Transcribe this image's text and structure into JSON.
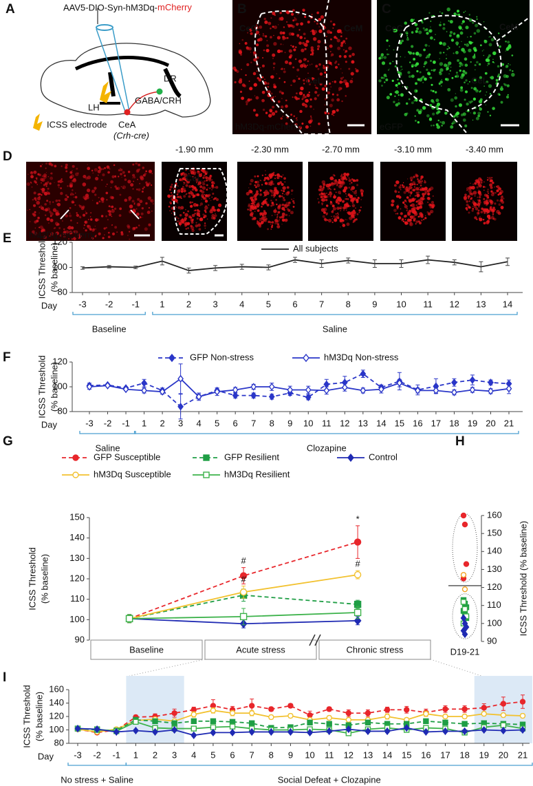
{
  "figure": {
    "A": {
      "label": "A",
      "virus": "AAV5-DIO-Syn-hM3Dq-",
      "virus_tag": "mCherry",
      "dr": "DR",
      "lh": "LH",
      "gaba": "GABA/CRH",
      "electrode": "ICSS electrode",
      "cea": "CeA",
      "cre": "(Crh-cre)"
    },
    "B": {
      "label": "B",
      "cec": "CeC",
      "cem": "CeM",
      "cel": "CeL",
      "stain": "hM3Dq-mCherry"
    },
    "C": {
      "label": "C",
      "cec": "CeC",
      "cem": "CeM",
      "cel": "CeL",
      "stain": "eGFP"
    },
    "D": {
      "label": "D",
      "stain": "hM3Dq-mCherry",
      "cel": "CeL",
      "levels": [
        "-1.90 mm",
        "-2.30 mm",
        "-2.70 mm",
        "-3.10 mm",
        "-3.40 mm"
      ]
    }
  },
  "chart_data": [
    {
      "type": "line",
      "label": "E",
      "ylabel": [
        "ICSS Threshold",
        "(% baseline)"
      ],
      "xlabel": "Day",
      "categories": [
        "-3",
        "-2",
        "-1",
        "1",
        "2",
        "3",
        "4",
        "5",
        "6",
        "7",
        "8",
        "9",
        "10",
        "11",
        "12",
        "13",
        "14"
      ],
      "groups": [
        "Baseline",
        "Saline"
      ],
      "ylim": [
        80,
        120
      ],
      "yticks": [
        80,
        100,
        120
      ],
      "series": [
        {
          "name": "All subjects",
          "color": "#222222",
          "marker": "none",
          "dash": false,
          "values": [
            99.5,
            100.5,
            100,
            105,
            97.5,
            99.5,
            100.5,
            100,
            106,
            103,
            105.5,
            103,
            103,
            106,
            104,
            100.5,
            104.5
          ],
          "errors": [
            1,
            1,
            1,
            3,
            2,
            2,
            2,
            2,
            2,
            3,
            2,
            3,
            3,
            3,
            2,
            4,
            3
          ]
        }
      ]
    },
    {
      "type": "line",
      "label": "F",
      "ylabel": [
        "ICSS Threshold",
        "(% baseline)"
      ],
      "xlabel": "Day",
      "categories": [
        "-3",
        "-2",
        "-1",
        "1",
        "2",
        "3",
        "4",
        "5",
        "6",
        "7",
        "8",
        "9",
        "10",
        "11",
        "12",
        "13",
        "14",
        "15",
        "16",
        "17",
        "18",
        "19",
        "20",
        "21"
      ],
      "groups": [
        "Saline",
        "Clozapine"
      ],
      "ylim": [
        80,
        120
      ],
      "yticks": [
        80,
        100,
        120
      ],
      "series": [
        {
          "name": "GFP Non-stress",
          "color": "#2a36c8",
          "marker": "diamond",
          "filled": true,
          "dash": true,
          "values": [
            101,
            101.5,
            99,
            103,
            97,
            84,
            92,
            97,
            93,
            93,
            92,
            95,
            91.5,
            102,
            103.5,
            110.5,
            99.5,
            104.5,
            97.5,
            100.5,
            103.5,
            105.5,
            103.5,
            102.5
          ],
          "errors": [
            2,
            1,
            1,
            3,
            2,
            10,
            3,
            2,
            2,
            2,
            2,
            2,
            2,
            4,
            5,
            3,
            2,
            7,
            4,
            6,
            3,
            4,
            2,
            3
          ]
        },
        {
          "name": "hM3Dq Non-stress",
          "color": "#2a36c8",
          "marker": "diamond",
          "filled": false,
          "dash": false,
          "values": [
            100,
            101,
            98,
            97,
            96,
            106.5,
            92,
            96,
            97.5,
            100,
            100,
            97.5,
            97.5,
            97,
            99.5,
            97,
            98,
            103,
            97,
            97,
            95.5,
            97.5,
            96.5,
            98.5
          ],
          "errors": [
            2,
            1,
            1,
            2,
            2,
            12,
            2,
            3,
            2,
            2,
            3,
            3,
            3,
            3,
            3,
            2,
            3,
            3,
            2,
            2,
            2,
            2,
            2,
            4
          ]
        }
      ]
    },
    {
      "type": "line",
      "label": "G",
      "ylabel": [
        "ICSS Threshold",
        "(% baseline)"
      ],
      "categories": [
        "Baseline",
        "Acute stress",
        "Chronic stress"
      ],
      "ylim": [
        90,
        150
      ],
      "yticks": [
        90,
        100,
        110,
        120,
        130,
        140,
        150
      ],
      "series": [
        {
          "name": "GFP Susceptible",
          "color": "#e8262b",
          "marker": "circle",
          "filled": true,
          "dash": true,
          "values": [
            100.5,
            121.5,
            138
          ],
          "errors": [
            2,
            4,
            8
          ],
          "annotations": [
            null,
            "#",
            "*"
          ]
        },
        {
          "name": "GFP Resilient",
          "color": "#1f9e45",
          "marker": "square",
          "filled": true,
          "dash": true,
          "values": [
            100.5,
            112,
            107.5
          ],
          "errors": [
            2,
            3,
            2
          ]
        },
        {
          "name": "Control",
          "color": "#1f2ab3",
          "marker": "diamond",
          "filled": true,
          "dash": false,
          "values": [
            100.5,
            98,
            99.5
          ],
          "errors": [
            2,
            2,
            2
          ]
        },
        {
          "name": "hM3Dq Susceptible",
          "color": "#f2c12e",
          "marker": "circle",
          "filled": false,
          "dash": false,
          "values": [
            100.5,
            113.5,
            122
          ],
          "errors": [
            2,
            3,
            2
          ],
          "annotations": [
            null,
            "#",
            "#"
          ]
        },
        {
          "name": "hM3Dq Resilient",
          "color": "#3cb24a",
          "marker": "square",
          "filled": false,
          "dash": false,
          "values": [
            100.5,
            101.5,
            103.5
          ],
          "errors": [
            2,
            4,
            3
          ]
        }
      ]
    },
    {
      "type": "scatter",
      "label": "H",
      "ylabel": "ICSS Threshold (% baseline)",
      "xlabel": "D19-21",
      "ylim": [
        90,
        160
      ],
      "yticks": [
        90,
        100,
        110,
        120,
        130,
        140,
        150,
        160
      ],
      "series": [
        {
          "color": "#e8262b",
          "marker": "circle",
          "filled": true,
          "values": [
            160,
            155,
            133,
            125
          ]
        },
        {
          "color": "#f2a21e",
          "marker": "circle",
          "filled": false,
          "values": [
            127,
            119
          ]
        },
        {
          "color": "#1f9e45",
          "marker": "square",
          "filled": true,
          "values": [
            113,
            111,
            109,
            107,
            105,
            103
          ]
        },
        {
          "color": "#3cb24a",
          "marker": "square",
          "filled": false,
          "values": [
            112,
            108,
            104,
            100
          ]
        },
        {
          "color": "#1f2ab3",
          "marker": "diamond",
          "filled": true,
          "values": [
            103,
            100,
            98,
            96,
            94
          ]
        }
      ]
    },
    {
      "type": "line",
      "label": "I",
      "ylabel": [
        "ICSS Threshold",
        "(% baseline)"
      ],
      "xlabel": "Day",
      "categories": [
        "-3",
        "-2",
        "-1",
        "1",
        "2",
        "3",
        "4",
        "5",
        "6",
        "7",
        "8",
        "9",
        "10",
        "11",
        "12",
        "13",
        "14",
        "15",
        "16",
        "17",
        "18",
        "19",
        "20",
        "21"
      ],
      "groups": [
        "No stress + Saline",
        "Social Defeat + Clozapine"
      ],
      "ylim": [
        80,
        160
      ],
      "yticks": [
        80,
        100,
        120,
        140,
        160
      ],
      "series": [
        {
          "color": "#e8262b",
          "marker": "circle",
          "filled": true,
          "dash": true,
          "values": [
            101,
            96,
            100,
            119,
            120,
            125,
            130,
            136,
            130,
            136,
            131,
            136,
            122,
            131,
            125,
            125,
            130,
            130,
            126,
            131,
            131,
            133,
            139,
            142
          ],
          "errors": [
            2,
            2,
            2,
            3,
            4,
            6,
            4,
            9,
            5,
            10,
            3,
            3,
            6,
            3,
            5,
            5,
            4,
            5,
            5,
            5,
            5,
            6,
            10,
            10
          ]
        },
        {
          "color": "#f2c12e",
          "marker": "circle",
          "filled": false,
          "dash": false,
          "values": [
            101,
            97,
            101,
            114,
            116,
            113,
            123,
            129,
            125,
            125,
            119,
            121,
            115,
            118,
            115,
            115,
            120,
            115,
            124,
            120,
            120,
            124,
            122,
            121
          ],
          "errors": [
            2,
            2,
            2,
            3,
            3,
            3,
            4,
            4,
            4,
            4,
            3,
            3,
            3,
            3,
            3,
            3,
            4,
            3,
            4,
            3,
            3,
            3,
            3,
            3
          ]
        },
        {
          "color": "#1f9e45",
          "marker": "square",
          "filled": true,
          "dash": true,
          "values": [
            102,
            100,
            99,
            115,
            113,
            110,
            113,
            113,
            112,
            110,
            103,
            104,
            111,
            109,
            107,
            111,
            109,
            109,
            113,
            111,
            109,
            110,
            109,
            108
          ],
          "errors": [
            2,
            2,
            2,
            3,
            3,
            3,
            3,
            3,
            3,
            3,
            3,
            3,
            3,
            3,
            3,
            3,
            3,
            3,
            3,
            3,
            3,
            3,
            3,
            3
          ]
        },
        {
          "color": "#3cb24a",
          "marker": "square",
          "filled": false,
          "dash": false,
          "values": [
            102,
            101,
            98,
            112,
            103,
            102,
            102,
            104,
            105,
            102,
            100,
            100,
            101,
            100,
            95,
            101,
            103,
            100,
            103,
            102,
            96,
            104,
            107,
            102
          ],
          "errors": [
            2,
            2,
            2,
            3,
            3,
            3,
            3,
            3,
            3,
            3,
            3,
            3,
            3,
            3,
            3,
            3,
            3,
            3,
            3,
            3,
            3,
            3,
            3,
            3
          ]
        },
        {
          "color": "#1f2ab3",
          "marker": "diamond",
          "filled": true,
          "dash": false,
          "values": [
            102,
            101,
            97,
            99,
            97,
            100,
            92,
            96,
            96,
            97,
            97,
            97,
            96,
            98,
            101,
            98,
            98,
            103,
            97,
            98,
            98,
            100,
            99,
            100
          ],
          "errors": [
            2,
            2,
            2,
            2,
            2,
            2,
            2,
            2,
            2,
            2,
            2,
            2,
            2,
            2,
            2,
            2,
            2,
            2,
            2,
            2,
            2,
            2,
            2,
            2
          ]
        }
      ]
    }
  ]
}
